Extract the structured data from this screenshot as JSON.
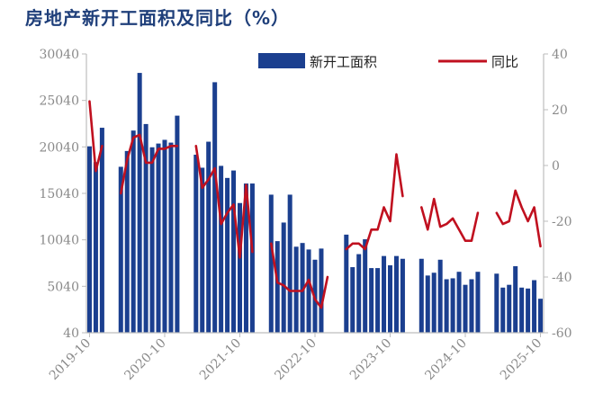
{
  "title": "房地产新开工面积及同比（%）",
  "chart_data": {
    "type": "bar+line",
    "title": "房地产新开工面积及同比（%）",
    "left_axis": {
      "ylim": [
        40,
        30040
      ],
      "ticks": [
        "40",
        "5040",
        "10040",
        "15040",
        "20040",
        "25040",
        "30040"
      ]
    },
    "right_axis": {
      "ylim": [
        -60,
        40
      ],
      "ticks": [
        "40",
        "20",
        "0",
        "-20",
        "-40",
        "-60"
      ]
    },
    "x_ticks": [
      "2019-10",
      "2020-10",
      "2021-10",
      "2022-10",
      "2023-10",
      "2024-10",
      "2025-10"
    ],
    "legend": {
      "placement": "top-right",
      "bar_label": "新开工面积",
      "line_label": "同比"
    },
    "colors": {
      "bar": "#1b3f8f",
      "line": "#c0101f",
      "title": "#1f3f7a",
      "axis": "#bdbdbd"
    },
    "months": [
      "2019-10",
      "2019-11",
      "2019-12",
      "2020-01",
      "2020-02",
      "2020-03",
      "2020-04",
      "2020-05",
      "2020-06",
      "2020-07",
      "2020-08",
      "2020-09",
      "2020-10",
      "2020-11",
      "2020-12",
      "2021-01",
      "2021-02",
      "2021-03",
      "2021-04",
      "2021-05",
      "2021-06",
      "2021-07",
      "2021-08",
      "2021-09",
      "2021-10",
      "2021-11",
      "2021-12",
      "2022-01",
      "2022-02",
      "2022-03",
      "2022-04",
      "2022-05",
      "2022-06",
      "2022-07",
      "2022-08",
      "2022-09",
      "2022-10",
      "2022-11",
      "2022-12",
      "2023-01",
      "2023-02",
      "2023-03",
      "2023-04",
      "2023-05",
      "2023-06",
      "2023-07",
      "2023-08",
      "2023-09",
      "2023-10",
      "2023-11",
      "2023-12",
      "2024-01",
      "2024-02",
      "2024-03",
      "2024-04",
      "2024-05",
      "2024-06",
      "2024-07",
      "2024-08",
      "2024-09",
      "2024-10",
      "2024-11",
      "2024-12",
      "2025-01",
      "2025-02",
      "2025-03",
      "2025-04",
      "2025-05",
      "2025-06",
      "2025-07",
      "2025-08",
      "2025-09",
      "2025-10"
    ],
    "series": [
      {
        "name": "新开工面积",
        "kind": "bar",
        "values": [
          20100,
          18400,
          22100,
          null,
          null,
          17900,
          19600,
          21800,
          28000,
          22500,
          20000,
          20400,
          20800,
          20500,
          23400,
          null,
          null,
          19200,
          17800,
          20600,
          27000,
          18000,
          16700,
          17500,
          14000,
          16100,
          16100,
          null,
          null,
          14900,
          9900,
          11900,
          14900,
          9300,
          9700,
          9000,
          7900,
          9100,
          null,
          null,
          null,
          10600,
          7100,
          8500,
          10100,
          7000,
          7000,
          8300,
          7300,
          8300,
          8000,
          null,
          null,
          8000,
          6200,
          6500,
          7900,
          5800,
          5900,
          6600,
          5200,
          5800,
          6600,
          null,
          null,
          6400,
          4900,
          5200,
          7200,
          4900,
          4800,
          5700,
          3700
        ]
      },
      {
        "name": "同比",
        "kind": "line",
        "values": [
          23,
          -2,
          7,
          null,
          null,
          -10,
          2,
          10,
          11,
          1,
          1,
          6,
          6,
          7,
          7,
          null,
          null,
          7,
          -8,
          -5,
          -1,
          -21,
          -17,
          -14,
          -33,
          -7,
          -31,
          null,
          null,
          -28,
          -42,
          -43,
          -45,
          -45,
          -45,
          -41,
          -48,
          -51,
          -40,
          null,
          null,
          -30,
          -28,
          -28,
          -30,
          -23,
          -23,
          -15,
          -20,
          4,
          -11,
          null,
          null,
          -15,
          -23,
          -12,
          -22,
          -21,
          -19,
          -23,
          -27,
          -27,
          -17,
          null,
          null,
          -17,
          -21,
          -20,
          -9,
          -15,
          -20,
          -15,
          -29
        ]
      }
    ]
  }
}
